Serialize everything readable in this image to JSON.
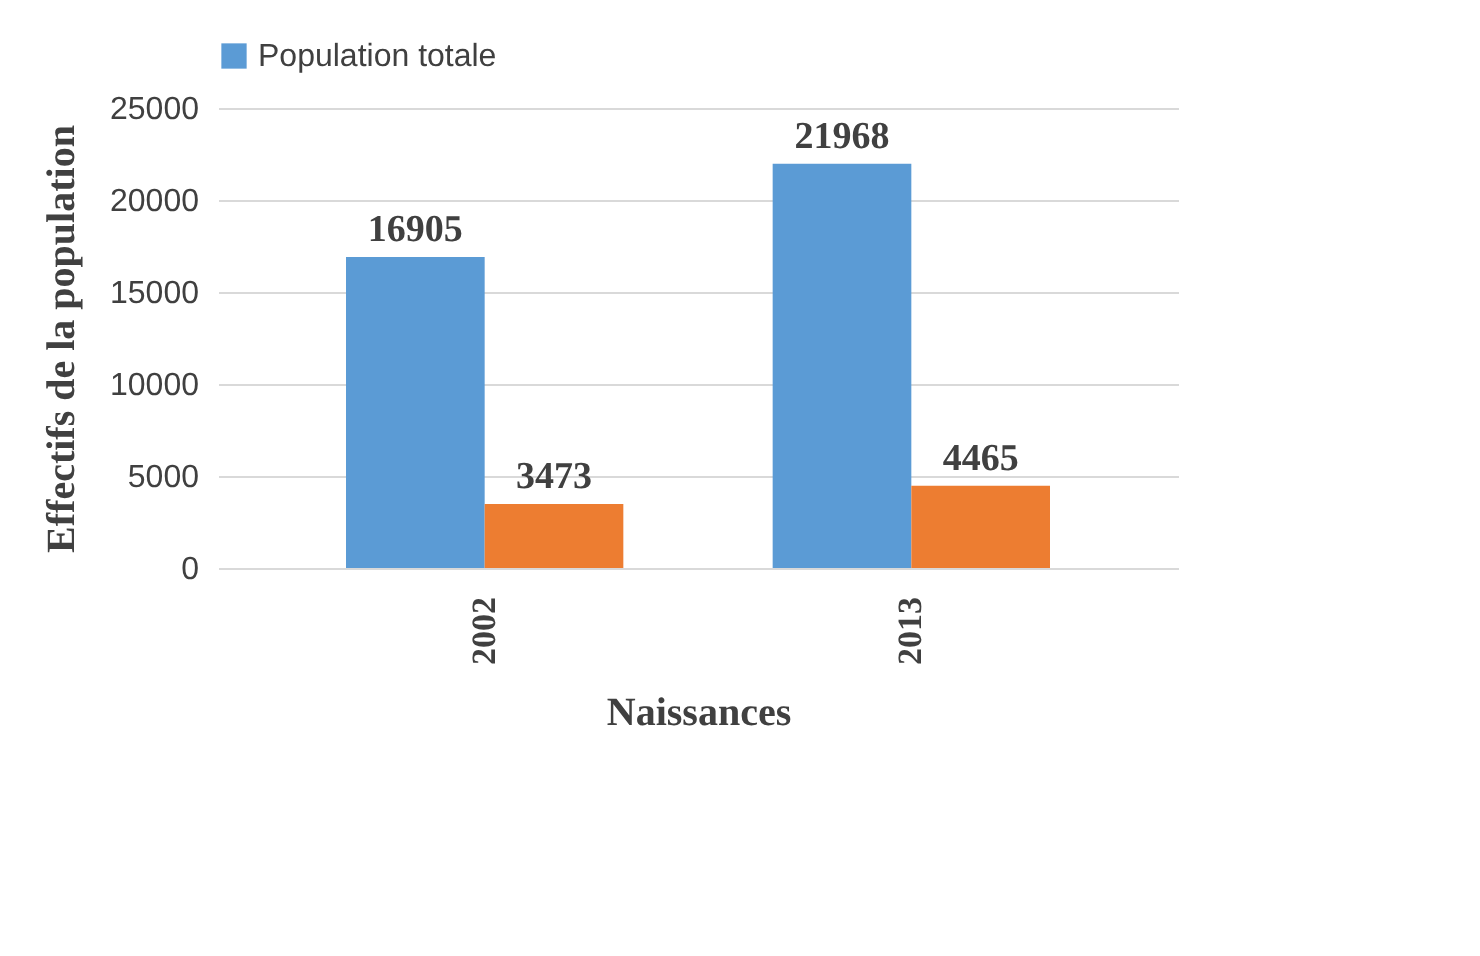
{
  "chart_data": {
    "type": "bar",
    "categories": [
      "2002",
      "2013"
    ],
    "xlabel": "Naissances",
    "ylabel": "Effectifs de la population",
    "series": [
      {
        "name": "Population totale",
        "color": "#5b9bd5",
        "values": [
          16905,
          21968
        ]
      },
      {
        "color": "#ed7d31",
        "values": [
          3473,
          4465
        ]
      }
    ],
    "ylim": [
      0,
      25000
    ],
    "yticks": [
      0,
      5000,
      10000,
      15000,
      20000,
      25000
    ],
    "grid": "y",
    "legend": "top",
    "data_labels": true
  }
}
